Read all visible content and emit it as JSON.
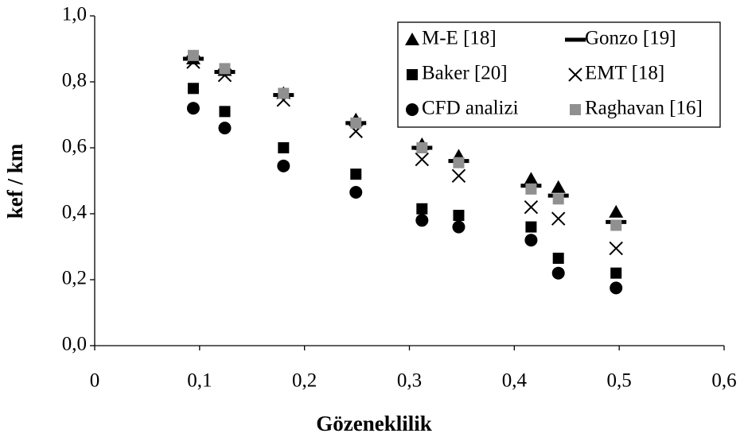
{
  "chart_data": {
    "type": "scatter",
    "x_label": "Gözeneklilik",
    "y_label": "kef / km",
    "x": [
      0.094,
      0.124,
      0.18,
      0.249,
      0.312,
      0.347,
      0.416,
      0.442,
      0.497
    ],
    "series": [
      {
        "name": "M-E [18]",
        "color": "#000000",
        "marker": "triangle",
        "values": [
          0.87,
          0.835,
          0.765,
          0.685,
          0.61,
          0.575,
          0.505,
          0.48,
          0.405
        ]
      },
      {
        "name": "Gonzo [19]",
        "color": "#000000",
        "marker": "dash",
        "values": [
          0.87,
          0.83,
          0.76,
          0.675,
          0.6,
          0.56,
          0.485,
          0.455,
          0.375
        ]
      },
      {
        "name": "Baker [20]",
        "color": "#000000",
        "marker": "square",
        "values": [
          0.78,
          0.71,
          0.6,
          0.52,
          0.415,
          0.395,
          0.36,
          0.265,
          0.22
        ]
      },
      {
        "name": "EMT [18]",
        "color": "#000000",
        "marker": "cross",
        "values": [
          0.86,
          0.82,
          0.745,
          0.65,
          0.565,
          0.515,
          0.42,
          0.385,
          0.295
        ]
      },
      {
        "name": "CFD analizi",
        "color": "#000000",
        "marker": "circle",
        "values": [
          0.72,
          0.66,
          0.545,
          0.465,
          0.38,
          0.36,
          0.32,
          0.22,
          0.175
        ]
      },
      {
        "name": "Raghavan [16]",
        "color": "#909090",
        "marker": "square",
        "values": [
          0.88,
          0.84,
          0.765,
          0.675,
          0.6,
          0.555,
          0.475,
          0.445,
          0.365
        ]
      }
    ],
    "xlim": [
      0,
      0.6
    ],
    "xticks": [
      0,
      {
        "value": 0.1,
        "label": "0,1"
      },
      {
        "value": 0.2,
        "label": "0,2"
      },
      {
        "value": 0.3,
        "label": "0,3"
      },
      {
        "value": 0.4,
        "label": "0,4"
      },
      {
        "value": 0.5,
        "label": "0,5"
      },
      {
        "value": 0.6,
        "label": "0,6"
      }
    ],
    "ylim": [
      0,
      1
    ],
    "yticks": [
      {
        "value": 0,
        "label": "0,0"
      },
      {
        "value": 0.2,
        "label": "0,2"
      },
      {
        "value": 0.4,
        "label": "0,4"
      },
      {
        "value": 0.6,
        "label": "0,6"
      },
      {
        "value": 0.8,
        "label": "0,8"
      },
      {
        "value": 1,
        "label": "1,0"
      }
    ],
    "legend": "top-right"
  }
}
